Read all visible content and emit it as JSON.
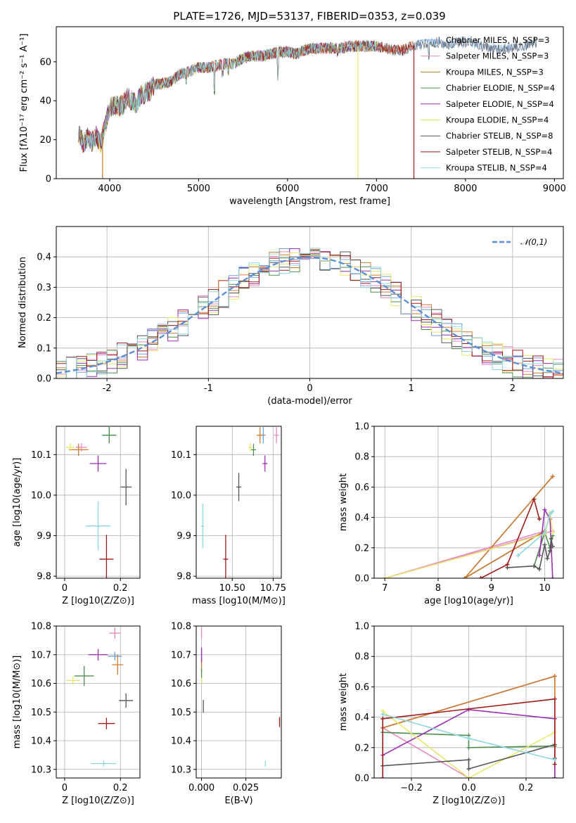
{
  "title": "PLATE=1726, MJD=53137, FIBERID=0353, z=0.039",
  "colors": [
    "#6fa0d8",
    "#e88bc4",
    "#d07a2a",
    "#4e8f4e",
    "#9b2fb0",
    "#e7e76c",
    "#555555",
    "#a11a1a",
    "#8ed8e0"
  ],
  "chart_data": [
    {
      "id": "spectrum",
      "type": "line",
      "xlabel": "wavelength [Angstrom, rest frame]",
      "ylabel": "Flux [fλ10⁻¹⁷ erg cm⁻² s⁻¹ A⁻¹]",
      "xlim": [
        3400,
        9100
      ],
      "ylim": [
        0,
        78
      ],
      "xticks": [
        4000,
        5000,
        6000,
        7000,
        8000,
        9000
      ],
      "yticks": [
        0,
        20,
        40,
        60
      ],
      "envelope": [
        [
          3650,
          24
        ],
        [
          3700,
          18
        ],
        [
          3750,
          21
        ],
        [
          3800,
          19
        ],
        [
          3850,
          22
        ],
        [
          3900,
          18
        ],
        [
          3950,
          27
        ],
        [
          4000,
          36
        ],
        [
          4050,
          38
        ],
        [
          4100,
          37
        ],
        [
          4150,
          38
        ],
        [
          4200,
          42
        ],
        [
          4250,
          40
        ],
        [
          4300,
          38
        ],
        [
          4350,
          43
        ],
        [
          4400,
          44
        ],
        [
          4450,
          45
        ],
        [
          4500,
          48
        ],
        [
          4600,
          49
        ],
        [
          4700,
          50
        ],
        [
          4800,
          54
        ],
        [
          4900,
          55
        ],
        [
          5000,
          57
        ],
        [
          5100,
          57
        ],
        [
          5200,
          58
        ],
        [
          5300,
          59
        ],
        [
          5400,
          59
        ],
        [
          5500,
          62
        ],
        [
          5600,
          63
        ],
        [
          5700,
          63
        ],
        [
          5800,
          64
        ],
        [
          5900,
          65
        ],
        [
          6000,
          65
        ],
        [
          6100,
          64
        ],
        [
          6200,
          66
        ],
        [
          6300,
          67
        ],
        [
          6400,
          67
        ],
        [
          6500,
          67
        ],
        [
          6600,
          67
        ],
        [
          6700,
          68
        ],
        [
          6800,
          68
        ],
        [
          6900,
          68
        ],
        [
          7000,
          68
        ],
        [
          7100,
          67
        ],
        [
          7200,
          66
        ],
        [
          7300,
          66
        ],
        [
          7400,
          68
        ],
        [
          7500,
          69
        ],
        [
          7600,
          70
        ],
        [
          7700,
          70
        ],
        [
          7800,
          69
        ],
        [
          7900,
          70
        ],
        [
          8000,
          70
        ],
        [
          8100,
          69
        ],
        [
          8200,
          68
        ],
        [
          8300,
          67
        ],
        [
          8400,
          66
        ],
        [
          8500,
          67
        ],
        [
          8600,
          68
        ],
        [
          8700,
          69
        ],
        [
          8800,
          70
        ]
      ],
      "absorption_lines": [
        [
          3934,
          40
        ],
        [
          3969,
          40
        ],
        [
          4102,
          40
        ],
        [
          4227,
          38
        ],
        [
          4305,
          40
        ],
        [
          4384,
          40
        ],
        [
          4861,
          50
        ],
        [
          5175,
          45
        ],
        [
          5270,
          54
        ],
        [
          5335,
          55
        ],
        [
          5890,
          52
        ],
        [
          6563,
          64
        ],
        [
          7590,
          62
        ]
      ],
      "spikes": [
        {
          "x": 3920,
          "y": 0,
          "series": 2
        },
        {
          "x": 6790,
          "y": 0,
          "series": 5
        },
        {
          "x": 7420,
          "y": 0,
          "series": 7
        }
      ],
      "series": [
        {
          "name": "Chabrier MILES, N_SSP=3"
        },
        {
          "name": "Salpeter MILES, N_SSP=3"
        },
        {
          "name": "Kroupa MILES, N_SSP=3"
        },
        {
          "name": "Chabrier ELODIE, N_SSP=4"
        },
        {
          "name": "Salpeter ELODIE, N_SSP=4"
        },
        {
          "name": "Kroupa ELODIE, N_SSP=4"
        },
        {
          "name": "Chabrier STELIB, N_SSP=8"
        },
        {
          "name": "Salpeter STELIB, N_SSP=4"
        },
        {
          "name": "Kroupa STELIB, N_SSP=4"
        }
      ]
    },
    {
      "id": "residuals",
      "type": "line",
      "xlabel": "(data-model)/error",
      "ylabel": "Normed distribution",
      "xlim": [
        -2.5,
        2.5
      ],
      "ylim": [
        0,
        0.5
      ],
      "xticks": [
        -2,
        -1,
        0,
        1,
        2
      ],
      "yticks": [
        0.0,
        0.1,
        0.2,
        0.3,
        0.4
      ],
      "legend": "𝒩(0,1)",
      "bin_width": 0.1
    },
    {
      "id": "age_vs_Z",
      "type": "scatter",
      "xlabel": "Z [log10(Z/Z⊙)]",
      "ylabel": "age [log10(age/yr)]",
      "xlim": [
        -0.03,
        0.27
      ],
      "ylim": [
        9.795,
        10.17
      ],
      "xticks": [
        0.0,
        0.2
      ],
      "yticks": [
        9.8,
        9.9,
        10.0,
        10.1
      ],
      "points": [
        [
          0.16,
          10.148,
          0.05,
          0.0,
          0.04
        ],
        [
          0.06,
          10.118,
          0.04,
          0.0,
          0.02
        ],
        [
          0.05,
          10.112,
          0.07,
          0.0,
          0.03
        ],
        [
          0.16,
          10.148,
          0.05,
          0.0,
          0.04
        ],
        [
          0.12,
          10.078,
          0.06,
          0.0,
          0.04
        ],
        [
          0.02,
          10.118,
          0.03,
          0.0,
          0.02
        ],
        [
          0.22,
          10.02,
          0.04,
          0.0,
          0.09
        ],
        [
          0.15,
          9.842,
          0.05,
          0.0,
          0.12
        ],
        [
          0.12,
          9.924,
          0.09,
          0.0,
          0.12
        ]
      ]
    },
    {
      "id": "age_vs_mass",
      "type": "scatter",
      "xlabel": "mass [log10(M/M⊙)]",
      "ylabel": "",
      "xlim": [
        10.28,
        10.8
      ],
      "ylim": [
        9.795,
        10.17
      ],
      "xticks": [
        10.5,
        10.75
      ],
      "xticklabels": [
        "10.50",
        "10.75"
      ],
      "yticks": [
        9.8,
        9.9,
        10.0,
        10.1
      ],
      "points": [
        [
          10.69,
          10.148,
          0.03,
          0.0,
          0.04
        ],
        [
          10.77,
          10.148,
          0.03,
          0.0,
          0.04
        ],
        [
          10.67,
          10.148,
          0.04,
          0.0,
          0.04
        ],
        [
          10.63,
          10.112,
          0.03,
          0.0,
          0.03
        ],
        [
          10.7,
          10.078,
          0.03,
          0.0,
          0.04
        ],
        [
          10.61,
          10.118,
          0.02,
          0.0,
          0.02
        ],
        [
          10.54,
          10.02,
          0.03,
          0.0,
          0.07
        ],
        [
          10.46,
          9.842,
          0.03,
          0.0,
          0.12
        ],
        [
          10.32,
          9.924,
          0.02,
          0.0,
          0.11
        ]
      ]
    },
    {
      "id": "weight_vs_age",
      "type": "line",
      "xlabel": "age [log10(age/yr)]",
      "ylabel": "mass weight",
      "xlim": [
        6.8,
        10.35
      ],
      "ylim": [
        0,
        1.0
      ],
      "xticks": [
        7,
        8,
        9,
        10
      ],
      "yticks": [
        0.0,
        0.2,
        0.4,
        0.6,
        0.8,
        1.0
      ],
      "series": [
        [
          [
            10.0,
            0.31
          ],
          [
            8.5,
            0.0
          ],
          [
            10.15,
            0.67
          ]
        ],
        [
          [
            10.0,
            0.31
          ],
          [
            7.0,
            0.0
          ],
          [
            10.15,
            0.31
          ]
        ],
        [
          [
            10.15,
            0.67
          ],
          [
            8.5,
            0.0
          ],
          [
            10.0,
            0.31
          ]
        ],
        [
          [
            9.8,
            0.08
          ],
          [
            10.0,
            0.3
          ],
          [
            10.1,
            0.2
          ],
          [
            10.15,
            0.28
          ]
        ],
        [
          [
            9.9,
            0.15
          ],
          [
            10.0,
            0.45
          ],
          [
            10.1,
            0.39
          ],
          [
            10.15,
            0.0
          ]
        ],
        [
          [
            7.0,
            0.0
          ],
          [
            10.0,
            0.29
          ],
          [
            10.1,
            0.43
          ],
          [
            10.15,
            0.3
          ]
        ],
        [
          [
            9.3,
            0.07
          ],
          [
            9.8,
            0.08
          ],
          [
            9.9,
            0.06
          ],
          [
            10.0,
            0.22
          ],
          [
            10.05,
            0.13
          ],
          [
            10.1,
            0.18
          ],
          [
            10.12,
            0.26
          ],
          [
            10.15,
            0.21
          ]
        ],
        [
          [
            8.8,
            0.0
          ],
          [
            9.3,
            0.09
          ],
          [
            9.8,
            0.52
          ],
          [
            9.9,
            0.39
          ]
        ],
        [
          [
            9.5,
            0.15
          ],
          [
            10.0,
            0.3
          ],
          [
            10.1,
            0.42
          ],
          [
            10.15,
            0.44
          ]
        ]
      ]
    },
    {
      "id": "mass_vs_Z",
      "type": "scatter",
      "xlabel": "Z [log10(Z/Z⊙)]",
      "ylabel": "mass [log10(M/M⊙)]",
      "xlim": [
        -0.03,
        0.27
      ],
      "ylim": [
        10.27,
        10.8
      ],
      "xticks": [
        0.0,
        0.2
      ],
      "yticks": [
        10.3,
        10.4,
        10.5,
        10.6,
        10.7,
        10.8
      ],
      "points": [
        [
          0.18,
          10.695,
          0.05,
          0.0,
          0.03
        ],
        [
          0.18,
          10.775,
          0.04,
          0.0,
          0.04
        ],
        [
          0.19,
          10.665,
          0.04,
          0.0,
          0.07
        ],
        [
          0.07,
          10.626,
          0.07,
          0.0,
          0.07
        ],
        [
          0.12,
          10.7,
          0.07,
          0.0,
          0.04
        ],
        [
          0.03,
          10.61,
          0.05,
          0.0,
          0.03
        ],
        [
          0.22,
          10.54,
          0.05,
          0.0,
          0.05
        ],
        [
          0.15,
          10.46,
          0.06,
          0.0,
          0.04
        ],
        [
          0.14,
          10.32,
          0.09,
          0.0,
          0.02
        ]
      ]
    },
    {
      "id": "mass_vs_EBV",
      "type": "scatter",
      "xlabel": "E(B-V)",
      "ylabel": "",
      "xlim": [
        -0.003,
        0.045
      ],
      "ylim": [
        10.27,
        10.8
      ],
      "xticks": [
        0.0,
        0.025
      ],
      "xticklabels": [
        "0.000",
        "0.025"
      ],
      "yticks": [
        10.3,
        10.4,
        10.5,
        10.6,
        10.7,
        10.8
      ],
      "points": [
        [
          0.0,
          10.695,
          0,
          0,
          0.05
        ],
        [
          0.0,
          10.775,
          0,
          0,
          0.04
        ],
        [
          0.0,
          10.665,
          0,
          0,
          0.05
        ],
        [
          0.0,
          10.626,
          0,
          0,
          0.05
        ],
        [
          0.0,
          10.7,
          0,
          0,
          0.05
        ],
        [
          0.0,
          10.61,
          0,
          0,
          0.02
        ],
        [
          0.001,
          10.52,
          0,
          0,
          0.045
        ],
        [
          0.044,
          10.465,
          0,
          0,
          0.035
        ],
        [
          0.036,
          10.32,
          0,
          0,
          0.02
        ]
      ]
    },
    {
      "id": "weight_vs_Z",
      "type": "line",
      "xlabel": "Z [log10(Z/Z⊙)]",
      "ylabel": "mass weight",
      "xlim": [
        -0.33,
        0.33
      ],
      "ylim": [
        0,
        1.0
      ],
      "xticks": [
        -0.2,
        0.0,
        0.2
      ],
      "xticklabels": [
        "−0.2",
        "0.0",
        "0.2"
      ],
      "yticks": [
        0.0,
        0.2,
        0.4,
        0.6,
        0.8,
        1.0
      ],
      "series": [
        [
          [
            -0.3,
            0.33
          ],
          [
            0.3,
            0.67
          ],
          [
            0.3,
            0.0
          ]
        ],
        [
          [
            -0.3,
            0.33
          ],
          [
            0.3,
            0.67
          ],
          [
            -0.3,
            0.33
          ],
          [
            0.0,
            0.0
          ]
        ],
        [
          [
            -0.3,
            0.33
          ],
          [
            0.3,
            0.67
          ],
          [
            0.3,
            0.0
          ]
        ],
        [
          [
            -0.3,
            0.3
          ],
          [
            0.0,
            0.28
          ],
          [
            0.0,
            0.2
          ],
          [
            0.3,
            0.21
          ]
        ],
        [
          [
            -0.3,
            0.15
          ],
          [
            0.0,
            0.45
          ],
          [
            0.3,
            0.39
          ],
          [
            0.3,
            0.0
          ]
        ],
        [
          [
            -0.3,
            0.44
          ],
          [
            0.0,
            0.0
          ],
          [
            0.3,
            0.3
          ]
        ],
        [
          [
            -0.3,
            0.08
          ],
          [
            0.0,
            0.12
          ],
          [
            0.0,
            0.06
          ],
          [
            0.3,
            0.22
          ],
          [
            0.3,
            0.13
          ]
        ],
        [
          [
            -0.3,
            0.0
          ],
          [
            -0.3,
            0.39
          ],
          [
            0.3,
            0.52
          ],
          [
            0.3,
            0.09
          ]
        ],
        [
          [
            -0.3,
            0.42
          ],
          [
            0.0,
            0.26
          ],
          [
            0.3,
            0.12
          ]
        ]
      ]
    }
  ]
}
